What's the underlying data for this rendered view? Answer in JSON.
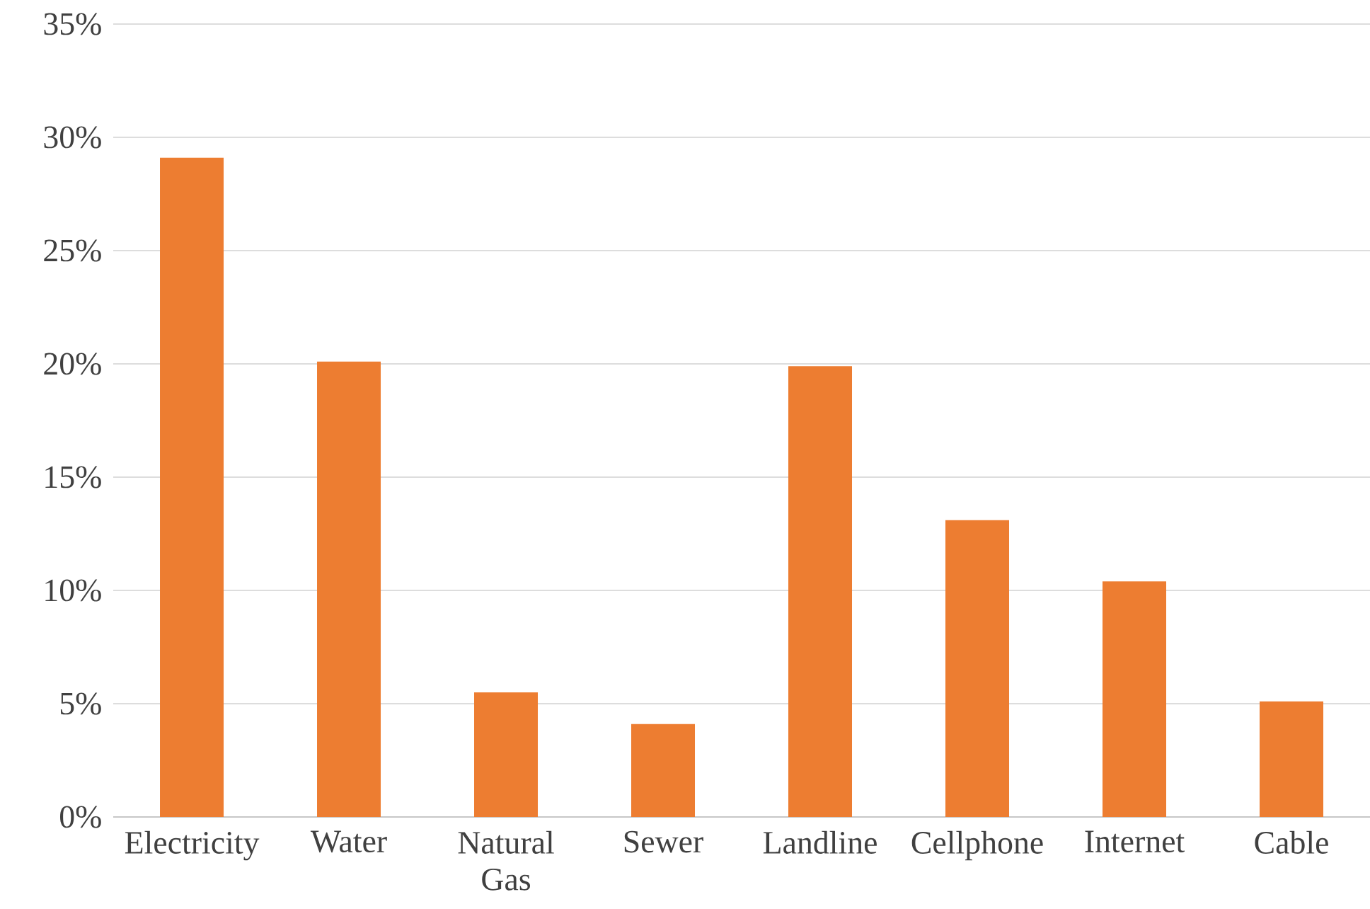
{
  "chart_data": {
    "type": "bar",
    "categories": [
      "Electricity",
      "Water",
      "Natural Gas",
      "Sewer",
      "Landline",
      "Cellphone",
      "Internet",
      "Cable"
    ],
    "values": [
      29.1,
      20.1,
      5.5,
      4.1,
      19.9,
      13.1,
      10.4,
      5.1
    ],
    "color": "#ed7d31",
    "ylim": [
      0,
      35
    ],
    "yticks": [
      {
        "value": 0,
        "label": "0%"
      },
      {
        "value": 5,
        "label": "5%"
      },
      {
        "value": 10,
        "label": "10%"
      },
      {
        "value": 15,
        "label": "15%"
      },
      {
        "value": 20,
        "label": "20%"
      },
      {
        "value": 25,
        "label": "25%"
      },
      {
        "value": 30,
        "label": "30%"
      },
      {
        "value": 35,
        "label": "35%"
      }
    ],
    "grid": "y"
  }
}
